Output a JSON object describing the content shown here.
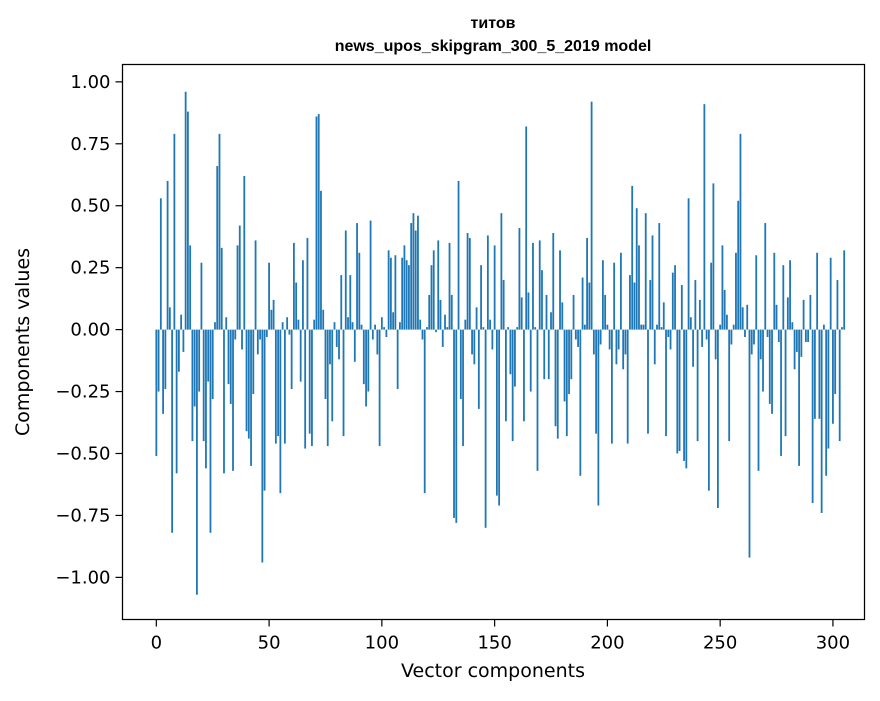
{
  "chart_data": {
    "type": "bar",
    "title": [
      "титов",
      "news_upos_skipgram_300_5_2019 model"
    ],
    "xlabel": "Vector components",
    "ylabel": "Components values",
    "xlim": [
      -15,
      314
    ],
    "ylim": [
      -1.17,
      1.07
    ],
    "xticks": [
      0,
      50,
      100,
      150,
      200,
      250,
      300
    ],
    "xtick_labels": [
      "0",
      "50",
      "100",
      "150",
      "200",
      "250",
      "300"
    ],
    "yticks": [
      1.0,
      0.75,
      0.5,
      0.25,
      0.0,
      -0.25,
      -0.5,
      -0.75,
      -1.0
    ],
    "ytick_labels": [
      "1.00",
      "0.75",
      "0.50",
      "0.25",
      "0.00",
      "−0.25",
      "−0.50",
      "−0.75",
      "−1.00"
    ],
    "grid": false,
    "bar_color": "#1f77b4",
    "values": [
      -0.51,
      -0.25,
      0.53,
      -0.34,
      -0.24,
      0.6,
      0.09,
      -0.82,
      0.79,
      -0.58,
      -0.17,
      0.06,
      -0.09,
      0.96,
      0.88,
      0.34,
      -0.45,
      -0.31,
      -1.07,
      -0.25,
      0.27,
      -0.45,
      -0.56,
      -0.21,
      -0.82,
      -0.28,
      0.03,
      0.66,
      0.79,
      0.33,
      -0.58,
      0.05,
      -0.22,
      -0.3,
      -0.57,
      -0.04,
      0.34,
      0.42,
      -0.08,
      0.62,
      -0.41,
      -0.44,
      -0.55,
      -0.26,
      0.36,
      -0.1,
      -0.04,
      -0.94,
      -0.65,
      -0.03,
      0.27,
      0.08,
      0.12,
      -0.46,
      -0.43,
      -0.66,
      0.03,
      -0.46,
      0.05,
      -0.02,
      -0.24,
      0.35,
      0.19,
      0.04,
      -0.21,
      0.28,
      -0.48,
      0.37,
      -0.42,
      -0.47,
      0.04,
      0.86,
      0.87,
      0.56,
      0.08,
      -0.28,
      -0.47,
      -0.14,
      -0.37,
      0.03,
      -0.07,
      -0.12,
      0.22,
      -0.43,
      0.4,
      0.05,
      0.22,
      0.03,
      -0.13,
      0.43,
      0.31,
      0.02,
      -0.22,
      -0.31,
      -0.25,
      0.44,
      -0.04,
      0.02,
      -0.1,
      -0.47,
      0.05,
      0.01,
      -0.03,
      0.32,
      0.29,
      0.07,
      0.3,
      -0.24,
      0.03,
      0.29,
      0.34,
      0.28,
      0.26,
      0.43,
      0.47,
      0.4,
      0.46,
      0.04,
      -0.04,
      -0.66,
      0.01,
      0.14,
      0.26,
      0.32,
      -0.01,
      0.36,
      0.12,
      -0.07,
      0.06,
      0.01,
      0.35,
      0.14,
      -0.76,
      -0.78,
      0.6,
      -0.28,
      -0.47,
      0.04,
      0.39,
      0.37,
      -0.1,
      -0.14,
      0.09,
      -0.32,
      0.26,
      0.01,
      -0.8,
      0.38,
      0.04,
      -0.08,
      0.34,
      -0.67,
      -0.71,
      0.47,
      0.2,
      -0.37,
      0.01,
      -0.18,
      -0.45,
      -0.23,
      0.01,
      0.41,
      0.13,
      -0.37,
      0.82,
      0.15,
      -0.25,
      0.35,
      0.01,
      -0.57,
      0.36,
      0.24,
      -0.2,
      0.14,
      -0.2,
      0.07,
      0.39,
      -0.39,
      -0.44,
      0.32,
      0.11,
      -0.29,
      -0.43,
      -0.26,
      -0.2,
      0.14,
      -0.04,
      -0.07,
      -0.59,
      0.21,
      0.02,
      0.37,
      0.19,
      0.92,
      -0.1,
      -0.42,
      -0.71,
      -0.06,
      0.28,
      0.14,
      0.02,
      -0.08,
      -0.46,
      0.27,
      -0.14,
      -0.08,
      0.31,
      -0.16,
      -0.1,
      -0.46,
      0.22,
      0.58,
      0.19,
      0.49,
      0.34,
      0.02,
      0.02,
      0.47,
      -0.42,
      0.2,
      0.38,
      -0.14,
      0.02,
      0.43,
      0.01,
      0.11,
      -0.43,
      -0.03,
      -0.08,
      0.23,
      0.26,
      -0.5,
      -0.49,
      0.18,
      -0.53,
      -0.56,
      0.53,
      0.05,
      -0.15,
      0.2,
      -0.45,
      0.12,
      -0.07,
      0.91,
      -0.04,
      -0.65,
      0.27,
      0.59,
      -0.12,
      -0.72,
      0.02,
      0.34,
      0.16,
      0.06,
      -0.45,
      -0.06,
      0.02,
      0.31,
      0.52,
      0.79,
      0.09,
      -0.03,
      0.1,
      -0.92,
      -0.1,
      -0.06,
      0.3,
      -0.57,
      -0.12,
      -0.25,
      0.43,
      -0.03,
      -0.3,
      -0.34,
      0.31,
      0.1,
      -0.05,
      -0.51,
      0.26,
      -0.43,
      0.13,
      0.28,
      0.03,
      -0.16,
      -0.09,
      -0.55,
      -0.11,
      0.12,
      -0.05,
      -0.05,
      0.14,
      -0.7,
      -0.36,
      0.31,
      -0.36,
      -0.74,
      0.02,
      -0.59,
      -0.48,
      0.29,
      -0.38,
      -0.26,
      0.2,
      -0.45,
      0.01,
      0.32
    ]
  }
}
